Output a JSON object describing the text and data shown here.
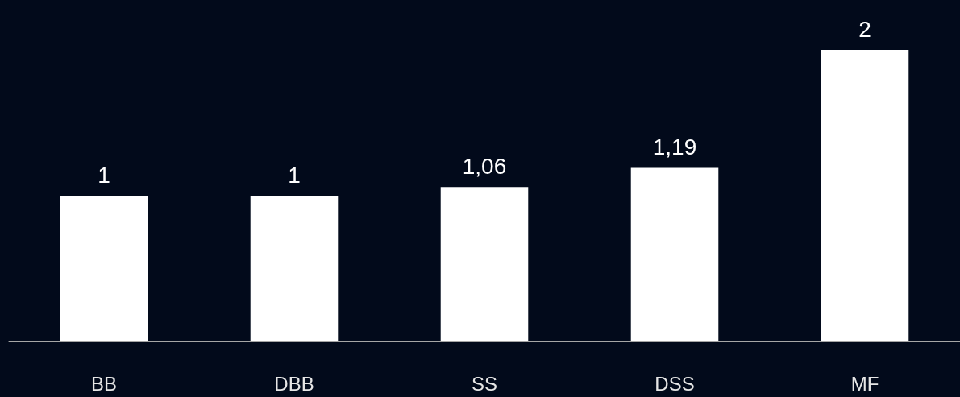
{
  "chart_data": {
    "type": "bar",
    "categories": [
      "BB",
      "DBB",
      "SS",
      "DSS",
      "MF"
    ],
    "values": [
      1,
      1,
      1.06,
      1.19,
      2
    ],
    "value_labels": [
      "1",
      "1",
      "1,06",
      "1,19",
      "2"
    ],
    "color": "#ffffff"
  }
}
